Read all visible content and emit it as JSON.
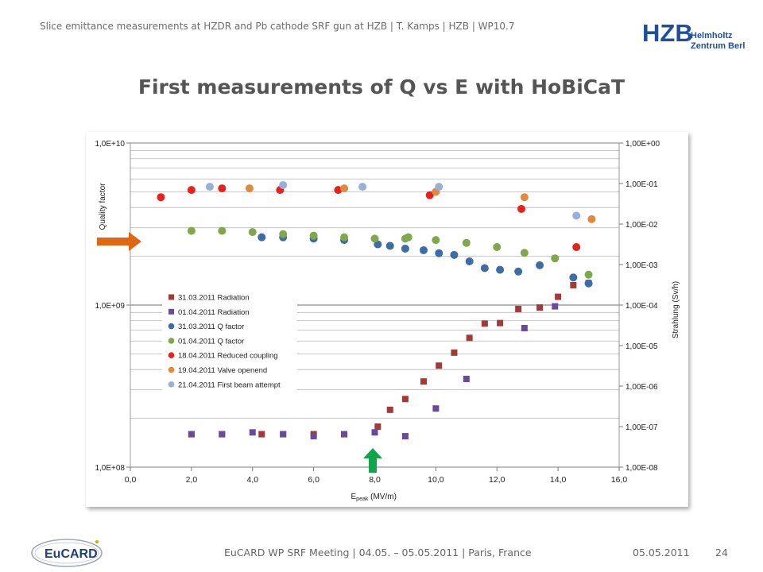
{
  "header": {
    "text": "Slice emittance measurements at HZDR and Pb cathode SRF gun at HZB | T. Kamps | HZB | WP10.7",
    "logo_main": "HZB",
    "logo_line1": "Helmholtz",
    "logo_line2": "Zentrum Berlin"
  },
  "title": "First measurements of Q vs E with HoBiCaT",
  "footer": {
    "logo_text": "EuCARD",
    "meeting": "EuCARD WP SRF Meeting | 04.05. – 05.05.2011 | Paris, France",
    "date": "05.05.2011",
    "page": "24"
  },
  "colors": {
    "hzb_blue": "#1d4f9a",
    "orange_arrow": "#e06614",
    "green_arrow": "#10a54a"
  },
  "chart_data": {
    "type": "scatter",
    "xlabel_main": "E",
    "xlabel_sub": "peak",
    "xlabel_unit": " (MV/m)",
    "ylabel_left": "Quality factor",
    "ylabel_right": "Strahlung (Sv/h)",
    "xlim": [
      0,
      16
    ],
    "x_ticks": [
      "0,0",
      "2,0",
      "4,0",
      "6,0",
      "8,0",
      "10,0",
      "12,0",
      "14,0",
      "16,0"
    ],
    "left_ticks": [
      "1,0E+10",
      "1,0E+09",
      "1,0E+08"
    ],
    "right_ticks": [
      "1,00E+00",
      "1,00E-01",
      "1,00E-02",
      "1,00E-03",
      "1,00E-04",
      "1,00E-05",
      "1,00E-06",
      "1,00E-07",
      "1,00E-08"
    ],
    "ylim_left": [
      100000000.0,
      10000000000.0
    ],
    "ylim_right": [
      1e-08,
      1
    ],
    "grid": true,
    "legend_position": "left-center",
    "series": [
      {
        "name": "31.03.2011 Radiation",
        "axis": "right",
        "marker": "square",
        "color": "#a23a3a",
        "points": [
          [
            2.0,
            6.5e-08
          ],
          [
            3.0,
            6.5e-08
          ],
          [
            4.3,
            6.5e-08
          ],
          [
            5.0,
            6.5e-08
          ],
          [
            6.0,
            6.5e-08
          ],
          [
            7.0,
            6.5e-08
          ],
          [
            8.1,
            1e-07
          ],
          [
            8.5,
            2.6e-07
          ],
          [
            9.0,
            4.8e-07
          ],
          [
            9.6,
            1.3e-06
          ],
          [
            10.1,
            3.2e-06
          ],
          [
            10.6,
            6.7e-06
          ],
          [
            11.1,
            1.55e-05
          ],
          [
            11.6,
            3.5e-05
          ],
          [
            12.1,
            3.6e-05
          ],
          [
            12.7,
            8e-05
          ],
          [
            13.4,
            8.7e-05
          ],
          [
            14.0,
            0.00016
          ],
          [
            14.5,
            0.00031
          ],
          [
            15.0,
            0.00035
          ]
        ]
      },
      {
        "name": "01.04.2011 Radiation",
        "axis": "right",
        "marker": "square",
        "color": "#6a4a9b",
        "points": [
          [
            2.0,
            6.5e-08
          ],
          [
            3.0,
            6.5e-08
          ],
          [
            4.0,
            7.2e-08
          ],
          [
            5.0,
            6.5e-08
          ],
          [
            6.0,
            5.8e-08
          ],
          [
            7.0,
            6.5e-08
          ],
          [
            8.0,
            7.2e-08
          ],
          [
            9.0,
            5.8e-08
          ],
          [
            10.0,
            2.8e-07
          ],
          [
            11.0,
            1.5e-06
          ],
          [
            12.9,
            2.7e-05
          ],
          [
            13.9,
            9.3e-05
          ]
        ]
      },
      {
        "name": "31.03.2011 Q factor",
        "axis": "left",
        "marker": "circle",
        "color": "#3e6ca6",
        "points": [
          [
            4.3,
            2620000000.0
          ],
          [
            5.0,
            2620000000.0
          ],
          [
            6.0,
            2570000000.0
          ],
          [
            7.0,
            2520000000.0
          ],
          [
            8.1,
            2370000000.0
          ],
          [
            8.5,
            2320000000.0
          ],
          [
            9.0,
            2230000000.0
          ],
          [
            9.6,
            2180000000.0
          ],
          [
            10.1,
            2090000000.0
          ],
          [
            10.6,
            2040000000.0
          ],
          [
            11.1,
            1860000000.0
          ],
          [
            11.6,
            1690000000.0
          ],
          [
            12.1,
            1650000000.0
          ],
          [
            12.7,
            1610000000.0
          ],
          [
            13.4,
            1760000000.0
          ],
          [
            14.5,
            1480000000.0
          ],
          [
            15.0,
            1360000000.0
          ]
        ]
      },
      {
        "name": "01.04.2011 Q factor",
        "axis": "left",
        "marker": "circle",
        "color": "#7ea84b",
        "points": [
          [
            2.0,
            2870000000.0
          ],
          [
            3.0,
            2870000000.0
          ],
          [
            4.0,
            2820000000.0
          ],
          [
            5.0,
            2740000000.0
          ],
          [
            6.0,
            2680000000.0
          ],
          [
            7.0,
            2620000000.0
          ],
          [
            8.0,
            2570000000.0
          ],
          [
            9.0,
            2570000000.0
          ],
          [
            9.1,
            2620000000.0
          ],
          [
            10.0,
            2520000000.0
          ],
          [
            11.0,
            2420000000.0
          ],
          [
            12.0,
            2280000000.0
          ],
          [
            12.9,
            2100000000.0
          ],
          [
            13.9,
            1940000000.0
          ],
          [
            15.0,
            1540000000.0
          ]
        ]
      },
      {
        "name": "18.04.2011 Reduced coupling",
        "axis": "left",
        "marker": "circle",
        "color": "#e8211c",
        "points": [
          [
            1.0,
            4630000000.0
          ],
          [
            2.0,
            5130000000.0
          ],
          [
            3.0,
            5250000000.0
          ],
          [
            4.9,
            5130000000.0
          ],
          [
            6.8,
            5130000000.0
          ],
          [
            9.8,
            4760000000.0
          ],
          [
            12.8,
            3920000000.0
          ],
          [
            14.6,
            2280000000.0
          ]
        ]
      },
      {
        "name": "19.04.2011 Valve openend",
        "axis": "left",
        "marker": "circle",
        "color": "#e3893e",
        "points": [
          [
            3.9,
            5250000000.0
          ],
          [
            7.0,
            5250000000.0
          ],
          [
            10.0,
            5000000000.0
          ],
          [
            12.9,
            4630000000.0
          ],
          [
            15.1,
            3390000000.0
          ]
        ]
      },
      {
        "name": "21.04.2011 First beam attempt",
        "axis": "left",
        "marker": "circle",
        "color": "#95b1d9",
        "points": [
          [
            2.6,
            5370000000.0
          ],
          [
            5.0,
            5500000000.0
          ],
          [
            7.6,
            5370000000.0
          ],
          [
            10.1,
            5370000000.0
          ],
          [
            14.6,
            3560000000.0
          ]
        ]
      }
    ]
  }
}
